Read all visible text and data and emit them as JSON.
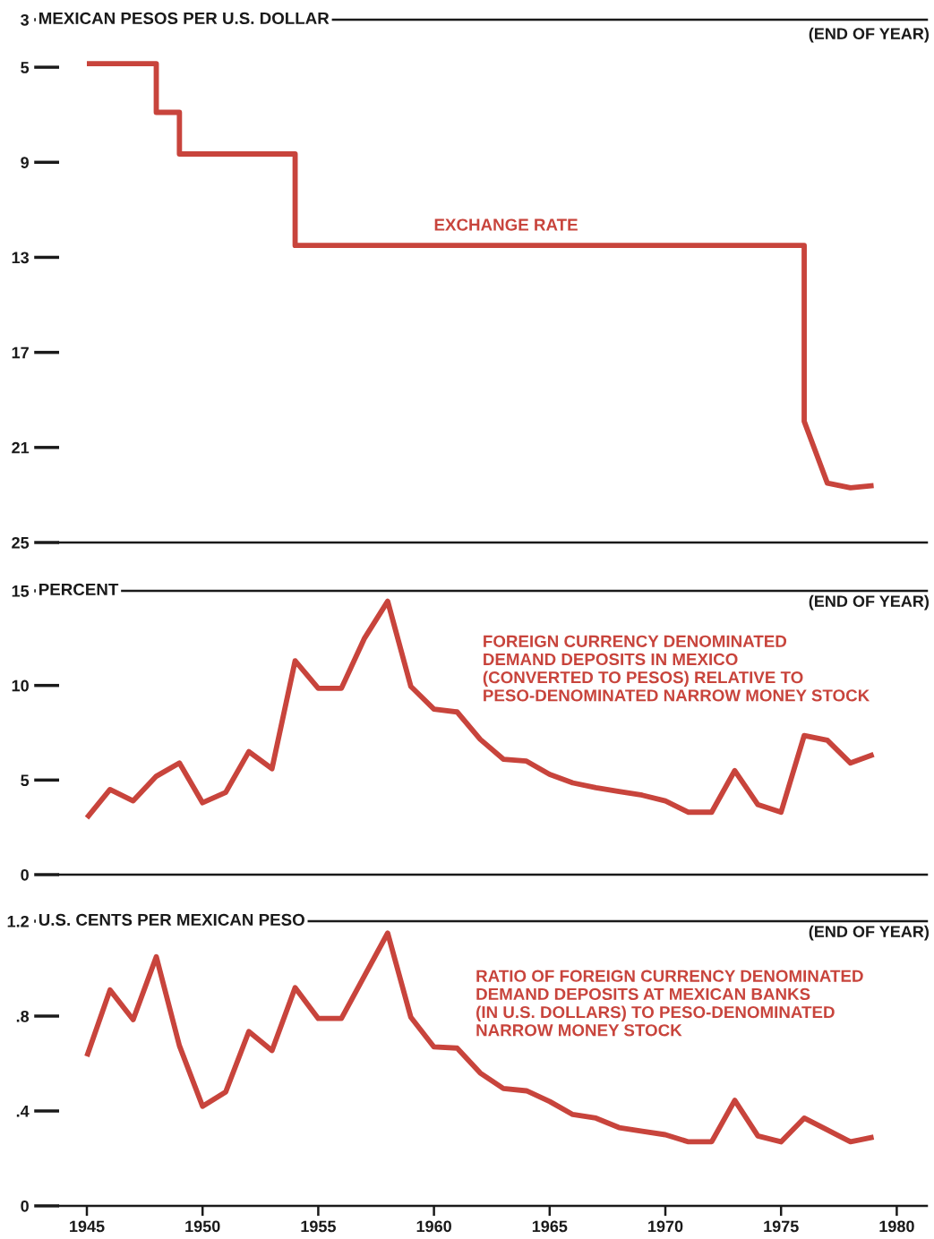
{
  "chart_data": [
    {
      "type": "line",
      "title": "MEXICAN PESOS PER U.S. DOLLAR",
      "annotations": [
        "(END OF YEAR)"
      ],
      "xlim": [
        1943.8,
        1981.3
      ],
      "ylim": [
        25,
        3
      ],
      "yticks": [
        3,
        5,
        9,
        13,
        17,
        21,
        25
      ],
      "tick_labels": "y",
      "series": [
        {
          "name": "EXCHANGE RATE",
          "color": "#c8443c",
          "x": [
            1945,
            1948,
            1948,
            1949,
            1949,
            1954,
            1954,
            1976,
            1976,
            1977,
            1978,
            1979
          ],
          "values": [
            4.85,
            4.85,
            6.9,
            6.9,
            8.65,
            8.65,
            12.5,
            12.5,
            19.9,
            22.5,
            22.7,
            22.6
          ]
        }
      ]
    },
    {
      "type": "line",
      "title": "PERCENT",
      "annotations": [
        "(END OF YEAR)"
      ],
      "xlim": [
        1943.8,
        1981.3
      ],
      "ylim": [
        0,
        15
      ],
      "yticks": [
        0,
        5,
        10,
        15
      ],
      "tick_labels": "y",
      "x": [
        1945,
        1946,
        1947,
        1948,
        1949,
        1950,
        1951,
        1952,
        1953,
        1954,
        1955,
        1956,
        1957,
        1958,
        1959,
        1960,
        1961,
        1962,
        1963,
        1964,
        1965,
        1966,
        1967,
        1968,
        1969,
        1970,
        1971,
        1972,
        1973,
        1974,
        1975,
        1976,
        1977,
        1978,
        1979
      ],
      "series": [
        {
          "name": "FOREIGN CURRENCY DENOMINATED\nDEMAND DEPOSITS IN MEXICO\n(CONVERTED TO PESOS) RELATIVE TO\nPESO-DENOMINATED NARROW MONEY STOCK",
          "color": "#c8443c",
          "values": [
            3.0,
            4.5,
            3.9,
            5.2,
            5.9,
            3.8,
            4.35,
            6.5,
            5.6,
            11.3,
            9.85,
            9.85,
            12.5,
            14.45,
            9.95,
            8.75,
            8.6,
            7.15,
            6.1,
            6.0,
            5.3,
            4.85,
            4.6,
            4.4,
            4.2,
            3.9,
            3.3,
            3.3,
            5.5,
            3.7,
            3.3,
            7.35,
            7.1,
            5.9,
            6.35
          ]
        }
      ]
    },
    {
      "type": "line",
      "title": "U.S. CENTS PER MEXICAN PESO",
      "annotations": [
        "(END OF YEAR)"
      ],
      "xlim": [
        1943.8,
        1981.3
      ],
      "ylim": [
        0,
        1.2
      ],
      "yticks": [
        {
          "value": 0,
          "label": "0"
        },
        {
          "value": 0.4,
          "label": ".4"
        },
        {
          "value": 0.8,
          "label": ".8"
        },
        {
          "value": 1.2,
          "label": "1.2"
        }
      ],
      "xticks": [
        1945,
        1950,
        1955,
        1960,
        1965,
        1970,
        1975,
        1980
      ],
      "x": [
        1945,
        1946,
        1947,
        1948,
        1949,
        1950,
        1951,
        1952,
        1953,
        1954,
        1955,
        1956,
        1957,
        1958,
        1959,
        1960,
        1961,
        1962,
        1963,
        1964,
        1965,
        1966,
        1967,
        1968,
        1969,
        1970,
        1971,
        1972,
        1973,
        1974,
        1975,
        1976,
        1977,
        1978,
        1979
      ],
      "series": [
        {
          "name": "RATIO OF FOREIGN CURRENCY DENOMINATED\nDEMAND DEPOSITS AT MEXICAN BANKS\n(IN U.S. DOLLARS) TO PESO-DENOMINATED\nNARROW MONEY STOCK",
          "color": "#c8443c",
          "values": [
            0.63,
            0.91,
            0.785,
            1.05,
            0.675,
            0.42,
            0.48,
            0.735,
            0.655,
            0.92,
            0.79,
            0.79,
            0.97,
            1.15,
            0.795,
            0.67,
            0.665,
            0.56,
            0.495,
            0.485,
            0.44,
            0.385,
            0.37,
            0.33,
            0.315,
            0.3,
            0.27,
            0.27,
            0.445,
            0.295,
            0.27,
            0.37,
            0.32,
            0.27,
            0.29
          ]
        }
      ]
    }
  ]
}
